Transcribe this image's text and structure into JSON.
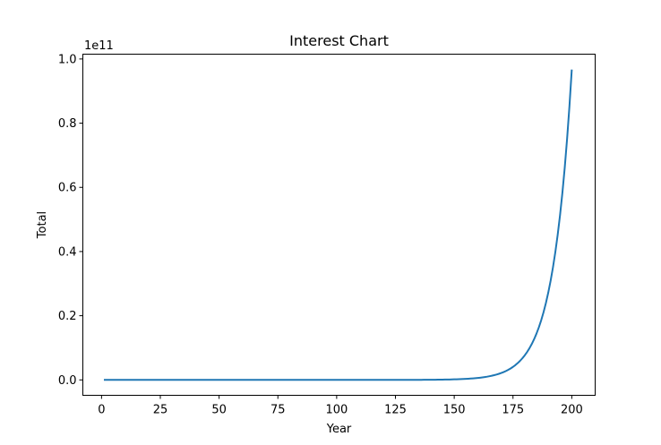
{
  "chart_data": {
    "type": "line",
    "title": "Interest Chart",
    "xlabel": "Year",
    "ylabel": "Total",
    "y_offset_text": "1e11",
    "y_scale_factor": 100000000000,
    "xlim": [
      -7.95,
      209.95
    ],
    "ylim": [
      -0.048,
      1.015
    ],
    "x_ticks": [
      0,
      25,
      50,
      75,
      100,
      125,
      150,
      175,
      200
    ],
    "x_tick_labels": [
      "0",
      "25",
      "50",
      "75",
      "100",
      "125",
      "150",
      "175",
      "200"
    ],
    "y_ticks": [
      0.0,
      0.2,
      0.4,
      0.6,
      0.8,
      1.0
    ],
    "y_tick_labels": [
      "0.0",
      "0.2",
      "0.4",
      "0.6",
      "0.8",
      "1.0"
    ],
    "grid": false,
    "legend": null,
    "series": [
      {
        "color": "#1f77b4",
        "x": [
          1,
          200
        ],
        "y": [
          1.06e-11,
          0.967
        ]
      }
    ]
  }
}
